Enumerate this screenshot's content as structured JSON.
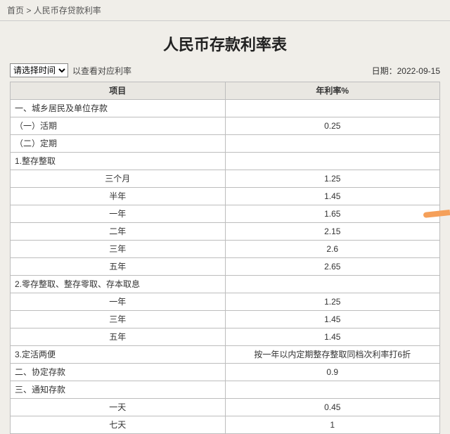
{
  "breadcrumb": {
    "home": "首页",
    "sep": ">",
    "current": "人民币存贷款利率"
  },
  "title": "人民币存款利率表",
  "toolbar": {
    "select_placeholder": "请选择时间",
    "hint": "以查看对应利率",
    "date_label": "日期：",
    "date_value": "2022-09-15"
  },
  "table": {
    "headers": {
      "c1": "项目",
      "c2": "年利率%"
    },
    "rows": [
      {
        "c1": "一、城乡居民及单位存款",
        "c2": "",
        "a1": "left"
      },
      {
        "c1": "（一）活期",
        "c2": "0.25",
        "a1": "left"
      },
      {
        "c1": "（二）定期",
        "c2": "",
        "a1": "left"
      },
      {
        "c1": "1.整存整取",
        "c2": "",
        "a1": "left"
      },
      {
        "c1": "三个月",
        "c2": "1.25",
        "a1": "center"
      },
      {
        "c1": "半年",
        "c2": "1.45",
        "a1": "center"
      },
      {
        "c1": "一年",
        "c2": "1.65",
        "a1": "center",
        "mark": true
      },
      {
        "c1": "二年",
        "c2": "2.15",
        "a1": "center"
      },
      {
        "c1": "三年",
        "c2": "2.6",
        "a1": "center"
      },
      {
        "c1": "五年",
        "c2": "2.65",
        "a1": "center"
      },
      {
        "c1": "2.零存整取、整存零取、存本取息",
        "c2": "",
        "a1": "left"
      },
      {
        "c1": "一年",
        "c2": "1.25",
        "a1": "center"
      },
      {
        "c1": "三年",
        "c2": "1.45",
        "a1": "center"
      },
      {
        "c1": "五年",
        "c2": "1.45",
        "a1": "center"
      },
      {
        "c1": "3.定活两便",
        "c2": "按一年以内定期整存整取同档次利率打6折",
        "a1": "left"
      },
      {
        "c1": "二、协定存款",
        "c2": "0.9",
        "a1": "left"
      },
      {
        "c1": "三、通知存款",
        "c2": "",
        "a1": "left"
      },
      {
        "c1": "一天",
        "c2": "0.45",
        "a1": "center"
      },
      {
        "c1": "七天",
        "c2": "1",
        "a1": "center"
      }
    ]
  }
}
